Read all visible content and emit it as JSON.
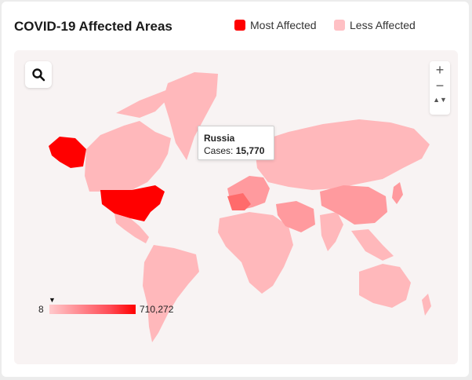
{
  "header": {
    "title": "COVID-19 Affected Areas",
    "legend": [
      {
        "label": "Most Affected",
        "color": "#ff0000"
      },
      {
        "label": "Less Affected",
        "color": "#ffc0c4"
      }
    ]
  },
  "map": {
    "search_icon": "search-icon",
    "zoom": {
      "in": "+",
      "out": "−",
      "slider": "▲▼"
    },
    "tooltip": {
      "country": "Russia",
      "label": "Cases:",
      "value": "15,770"
    },
    "scale": {
      "min": "8",
      "max": "710,272",
      "pointer": "▼"
    },
    "colors": {
      "most": "#ff0000",
      "high": "#ff6b6b",
      "medium": "#ff9a9e",
      "low": "#ffb8bb",
      "none": "#ececec"
    }
  }
}
